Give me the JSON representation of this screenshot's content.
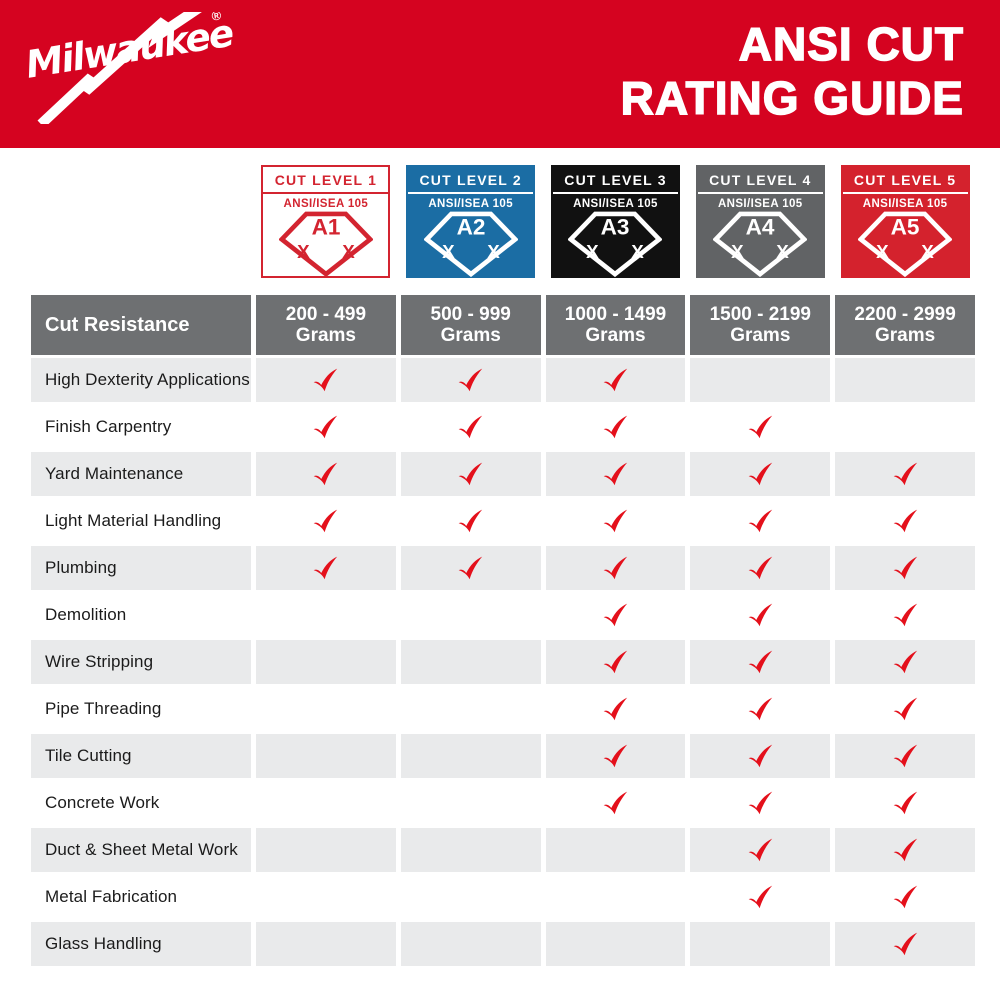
{
  "masthead": {
    "brand": "Milwaukee",
    "registered_mark": "®",
    "title_line1": "ANSI CUT",
    "title_line2": "RATING GUIDE",
    "bg_color": "#d50320"
  },
  "badges": [
    {
      "title": "CUT LEVEL 1",
      "standard": "ANSI/ISEA 105",
      "rating": "A1",
      "x_left": "X",
      "x_right": "X",
      "bg": "#ffffff",
      "fg": "#d32430",
      "border": "#d32430"
    },
    {
      "title": "CUT LEVEL 2",
      "standard": "ANSI/ISEA 105",
      "rating": "A2",
      "x_left": "X",
      "x_right": "X",
      "bg": "#1b6da4",
      "fg": "#ffffff",
      "border": "#1b6da4"
    },
    {
      "title": "CUT LEVEL 3",
      "standard": "ANSI/ISEA 105",
      "rating": "A3",
      "x_left": "X",
      "x_right": "X",
      "bg": "#111111",
      "fg": "#ffffff",
      "border": "#111111"
    },
    {
      "title": "CUT LEVEL 4",
      "standard": "ANSI/ISEA 105",
      "rating": "A4",
      "x_left": "X",
      "x_right": "X",
      "bg": "#616365",
      "fg": "#ffffff",
      "border": "#616365"
    },
    {
      "title": "CUT LEVEL 5",
      "standard": "ANSI/ISEA 105",
      "rating": "A5",
      "x_left": "X",
      "x_right": "X",
      "bg": "#d4222d",
      "fg": "#ffffff",
      "border": "#d4222d"
    }
  ],
  "table": {
    "corner_label": "Cut Resistance",
    "columns": [
      {
        "range": "200 - 499",
        "unit": "Grams"
      },
      {
        "range": "500 - 999",
        "unit": "Grams"
      },
      {
        "range": "1000 - 1499",
        "unit": "Grams"
      },
      {
        "range": "1500 - 2199",
        "unit": "Grams"
      },
      {
        "range": "2200 - 2999",
        "unit": "Grams"
      }
    ],
    "rows": [
      {
        "label": "High Dexterity Applications",
        "checks": [
          true,
          true,
          true,
          false,
          false
        ]
      },
      {
        "label": "Finish Carpentry",
        "checks": [
          true,
          true,
          true,
          true,
          false
        ]
      },
      {
        "label": "Yard Maintenance",
        "checks": [
          true,
          true,
          true,
          true,
          true
        ]
      },
      {
        "label": "Light Material Handling",
        "checks": [
          true,
          true,
          true,
          true,
          true
        ]
      },
      {
        "label": "Plumbing",
        "checks": [
          true,
          true,
          true,
          true,
          true
        ]
      },
      {
        "label": "Demolition",
        "checks": [
          false,
          false,
          true,
          true,
          true
        ]
      },
      {
        "label": "Wire Stripping",
        "checks": [
          false,
          false,
          true,
          true,
          true
        ]
      },
      {
        "label": "Pipe Threading",
        "checks": [
          false,
          false,
          true,
          true,
          true
        ]
      },
      {
        "label": "Tile Cutting",
        "checks": [
          false,
          false,
          true,
          true,
          true
        ]
      },
      {
        "label": "Concrete Work",
        "checks": [
          false,
          false,
          true,
          true,
          true
        ]
      },
      {
        "label": "Duct & Sheet Metal Work",
        "checks": [
          false,
          false,
          false,
          true,
          true
        ]
      },
      {
        "label": "Metal Fabrication",
        "checks": [
          false,
          false,
          false,
          true,
          true
        ]
      },
      {
        "label": "Glass Handling",
        "checks": [
          false,
          false,
          false,
          false,
          true
        ]
      }
    ],
    "header_bg": "#6e7072",
    "row_alt_bg": "#e9eaeb",
    "check_color": "#e4101b"
  }
}
